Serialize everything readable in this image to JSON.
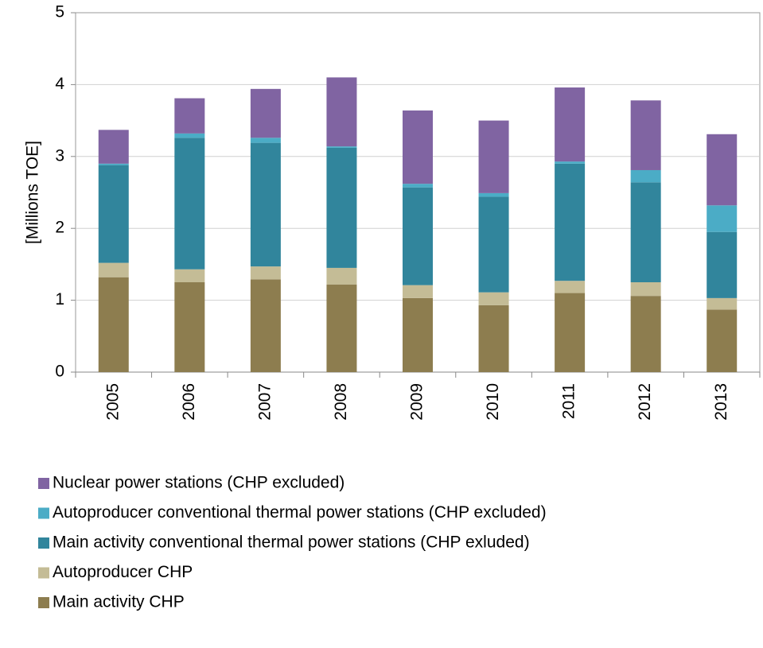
{
  "chart_data": {
    "type": "stacked_bar",
    "ylabel": "[Millions TOE]",
    "categories": [
      "2005",
      "2006",
      "2007",
      "2008",
      "2009",
      "2010",
      "2011",
      "2012",
      "2013"
    ],
    "series": [
      {
        "name": "Main activity CHP",
        "color": "#8d7d4f",
        "values": [
          1.32,
          1.25,
          1.29,
          1.22,
          1.03,
          0.93,
          1.1,
          1.06,
          0.87
        ]
      },
      {
        "name": "Autoproducer CHP",
        "color": "#c4bc96",
        "values": [
          0.2,
          0.18,
          0.18,
          0.23,
          0.18,
          0.18,
          0.17,
          0.19,
          0.16
        ]
      },
      {
        "name": "Main activity conventional thermal power stations (CHP exluded)",
        "color": "#31859c",
        "values": [
          1.36,
          1.83,
          1.72,
          1.67,
          1.36,
          1.33,
          1.63,
          1.39,
          0.92
        ]
      },
      {
        "name": "Autoproducer conventional thermal power stations (CHP excluded)",
        "color": "#4bacc6",
        "values": [
          0.02,
          0.06,
          0.07,
          0.02,
          0.05,
          0.05,
          0.03,
          0.17,
          0.37
        ]
      },
      {
        "name": "Nuclear power stations (CHP excluded)",
        "color": "#8064a2",
        "values": [
          0.47,
          0.49,
          0.68,
          0.96,
          1.02,
          1.01,
          1.03,
          0.97,
          0.99
        ]
      }
    ],
    "ylim": [
      0,
      5
    ],
    "yticks": [
      0,
      1,
      2,
      3,
      4,
      5
    ],
    "grid": true,
    "legend": "bottom"
  }
}
